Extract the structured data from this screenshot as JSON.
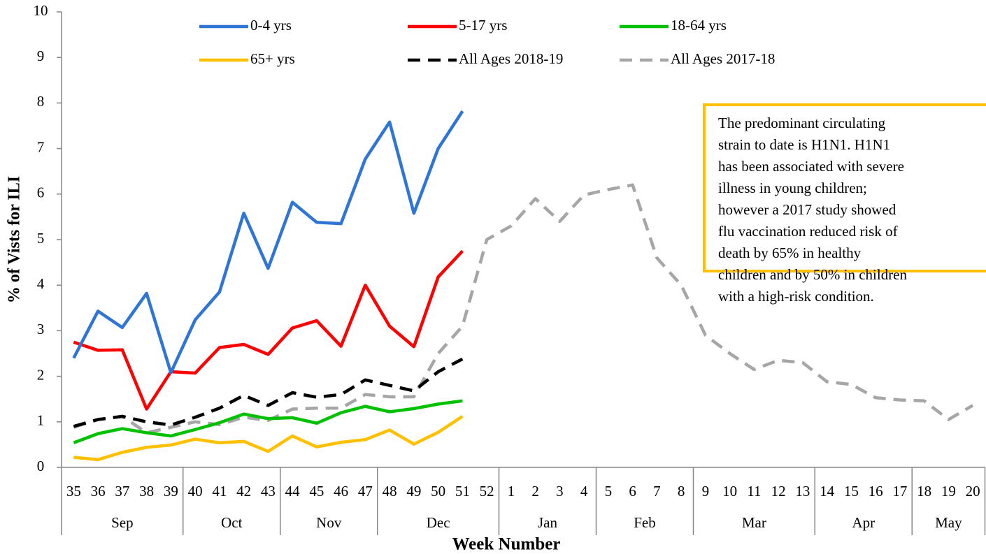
{
  "chart_data": {
    "type": "line",
    "y_label": "% of Vists for ILI",
    "x_label": "Week Number",
    "categories": [
      "35",
      "36",
      "37",
      "38",
      "39",
      "40",
      "41",
      "42",
      "43",
      "44",
      "45",
      "46",
      "47",
      "48",
      "49",
      "50",
      "51",
      "52",
      "1",
      "2",
      "3",
      "4",
      "5",
      "6",
      "7",
      "8",
      "9",
      "10",
      "11",
      "12",
      "13",
      "14",
      "15",
      "16",
      "17",
      "18",
      "19",
      "20"
    ],
    "groups": [
      {
        "label": "Sep",
        "span": 5
      },
      {
        "label": "Oct",
        "span": 4
      },
      {
        "label": "Nov",
        "span": 4
      },
      {
        "label": "Dec",
        "span": 5
      },
      {
        "label": "Jan",
        "span": 4
      },
      {
        "label": "Feb",
        "span": 4
      },
      {
        "label": "Mar",
        "span": 5
      },
      {
        "label": "Apr",
        "span": 4
      },
      {
        "label": "May",
        "span": 3
      }
    ],
    "ylim": [
      0,
      10
    ],
    "yticks": [
      0,
      1,
      2,
      3,
      4,
      5,
      6,
      7,
      8,
      9,
      10
    ],
    "series": [
      {
        "name": "0-4 yrs",
        "color": "#2e75d6",
        "dash": false,
        "values": [
          2.4,
          3.43,
          3.07,
          3.82,
          2.08,
          3.24,
          3.85,
          5.58,
          4.37,
          5.82,
          5.38,
          5.35,
          6.77,
          7.58,
          5.58,
          7.0,
          7.82,
          null,
          null,
          null,
          null,
          null,
          null,
          null,
          null,
          null,
          null,
          null,
          null,
          null,
          null,
          null,
          null,
          null,
          null,
          null,
          null,
          null
        ]
      },
      {
        "name": "5-17 yrs",
        "color": "#ff0000",
        "dash": false,
        "values": [
          2.75,
          2.57,
          2.58,
          1.28,
          2.1,
          2.07,
          2.63,
          2.7,
          2.48,
          3.06,
          3.22,
          2.66,
          4.0,
          3.1,
          2.65,
          4.18,
          4.75,
          null,
          null,
          null,
          null,
          null,
          null,
          null,
          null,
          null,
          null,
          null,
          null,
          null,
          null,
          null,
          null,
          null,
          null,
          null,
          null,
          null
        ]
      },
      {
        "name": "18-64 yrs",
        "color": "#00c000",
        "dash": false,
        "values": [
          0.54,
          0.74,
          0.85,
          0.76,
          0.69,
          0.83,
          0.98,
          1.17,
          1.07,
          1.09,
          0.97,
          1.2,
          1.34,
          1.22,
          1.29,
          1.39,
          1.46,
          null,
          null,
          null,
          null,
          null,
          null,
          null,
          null,
          null,
          null,
          null,
          null,
          null,
          null,
          null,
          null,
          null,
          null,
          null,
          null,
          null
        ]
      },
      {
        "name": "65+ yrs",
        "color": "#ffc000",
        "dash": false,
        "values": [
          0.22,
          0.17,
          0.33,
          0.44,
          0.49,
          0.62,
          0.54,
          0.57,
          0.35,
          0.69,
          0.45,
          0.55,
          0.61,
          0.82,
          0.51,
          0.77,
          1.12,
          null,
          null,
          null,
          null,
          null,
          null,
          null,
          null,
          null,
          null,
          null,
          null,
          null,
          null,
          null,
          null,
          null,
          null,
          null,
          null,
          null
        ]
      },
      {
        "name": "All Ages 2018-19",
        "color": "#000000",
        "dash": true,
        "values": [
          0.9,
          1.05,
          1.12,
          1.0,
          0.93,
          1.1,
          1.3,
          1.58,
          1.36,
          1.64,
          1.54,
          1.6,
          1.92,
          1.8,
          1.68,
          2.1,
          2.38,
          null,
          null,
          null,
          null,
          null,
          null,
          null,
          null,
          null,
          null,
          null,
          null,
          null,
          null,
          null,
          null,
          null,
          null,
          null,
          null,
          null
        ]
      },
      {
        "name": "All Ages 2017-18",
        "color": "#a6a6a6",
        "dash": true,
        "values": [
          0.88,
          1.05,
          1.12,
          0.76,
          0.88,
          1.0,
          0.94,
          1.1,
          1.03,
          1.28,
          1.3,
          1.3,
          1.6,
          1.55,
          1.55,
          2.5,
          3.1,
          5.0,
          5.3,
          5.9,
          5.4,
          5.98,
          6.1,
          6.2,
          4.6,
          4.0,
          2.9,
          2.5,
          2.15,
          2.35,
          2.3,
          1.88,
          1.82,
          1.53,
          1.48,
          1.46,
          1.05,
          1.36
        ]
      }
    ],
    "annotation": [
      "The predominant circulating",
      "strain to date is H1N1. H1N1",
      "has been associated with severe",
      "illness in young children;",
      "however a 2017 study showed",
      "flu vaccination reduced risk of",
      "death by 65% in healthy",
      "children and by 50% in children",
      "with a high-risk condition."
    ],
    "annotation_color": "#ffc000"
  }
}
